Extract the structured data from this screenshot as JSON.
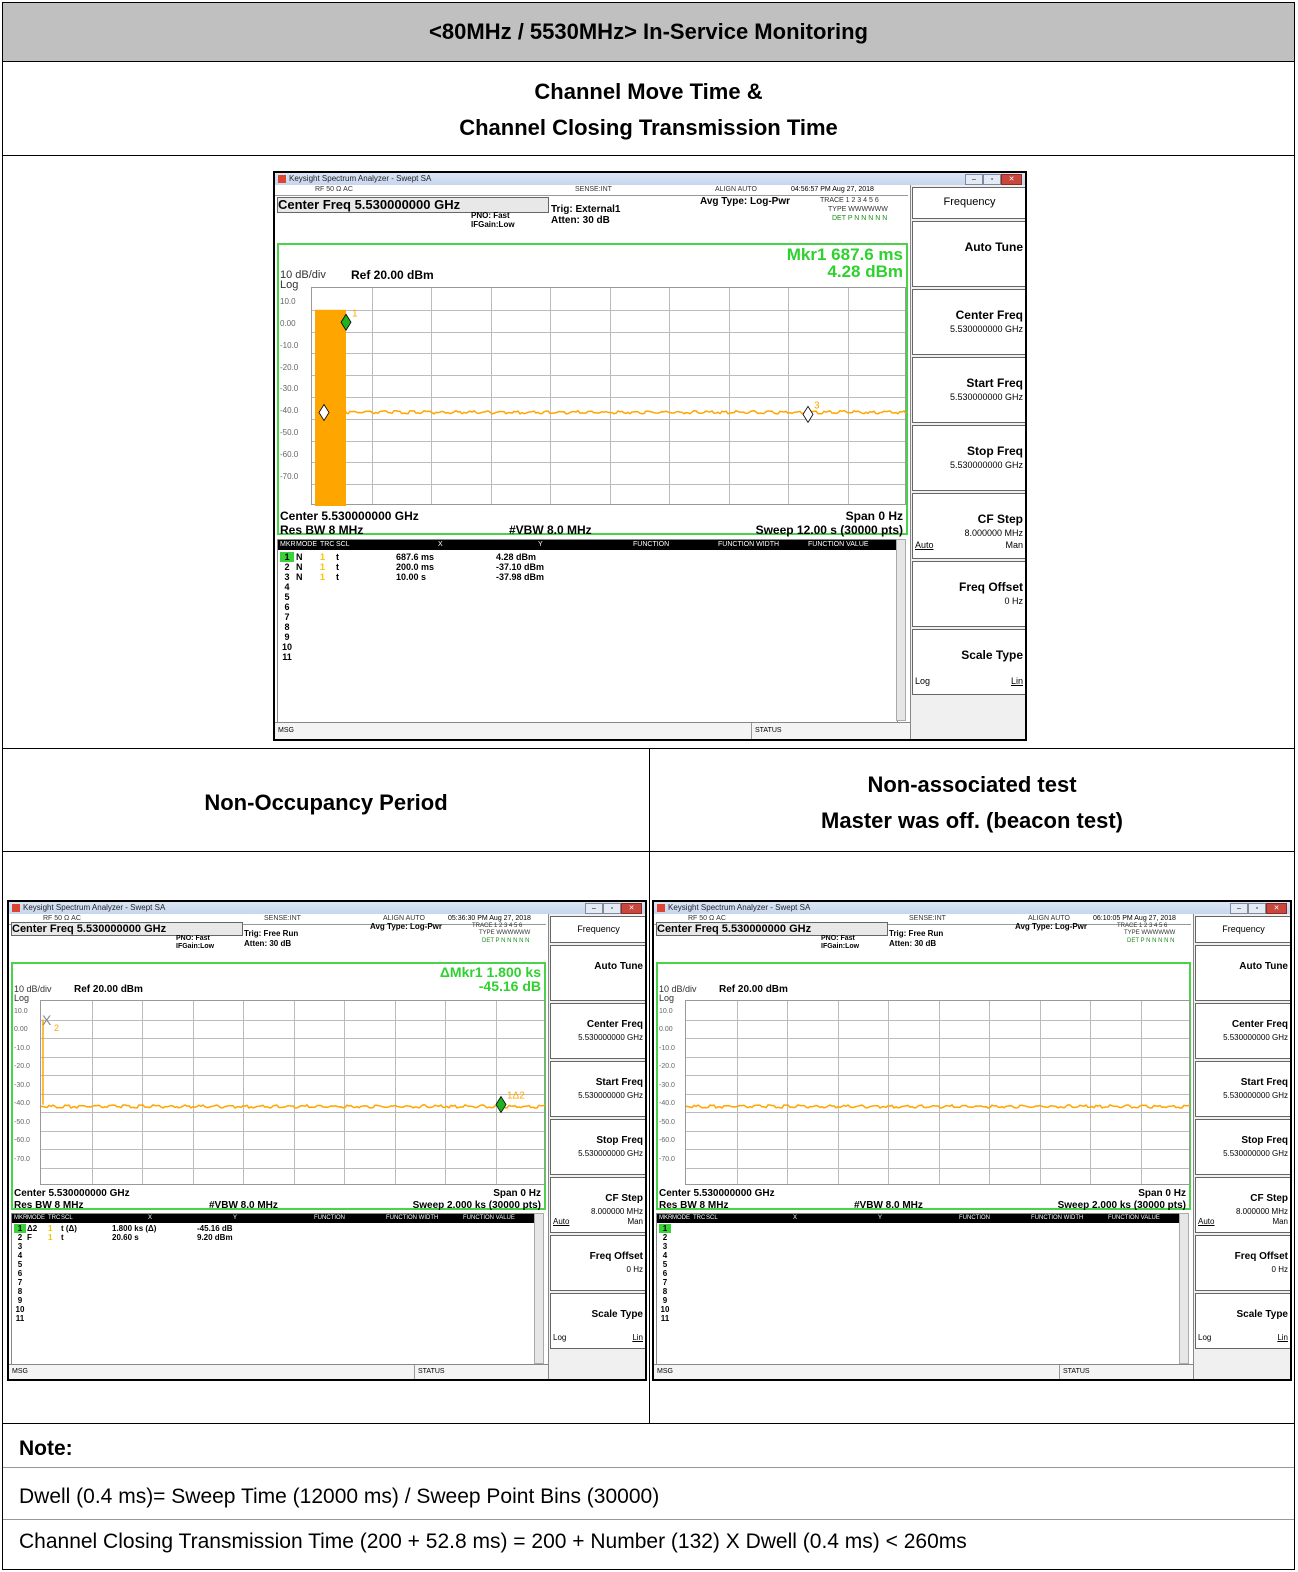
{
  "header": {
    "title": "<80MHz / 5530MHz> In-Service Monitoring"
  },
  "section1": {
    "line1": "Channel Move Time &",
    "line2": "Channel Closing Transmission Time"
  },
  "section2": {
    "left_title": "Non-Occupancy Period",
    "right_line1": "Non-associated test",
    "right_line2": "Master was off. (beacon test)"
  },
  "note": {
    "label": "Note:",
    "line1": "Dwell (0.4 ms)= Sweep Time (12000 ms) / Sweep Point Bins (30000)",
    "line2": "Channel Closing Transmission Time (200 + 52.8 ms) = 200 + Number (132) X Dwell (0.4 ms) < 260ms"
  },
  "analyzers": [
    {
      "window_title": "Keysight Spectrum Analyzer - Swept SA",
      "status_left": "RF    50 Ω  AC",
      "sense": "SENSE:INT",
      "align": "ALIGN AUTO",
      "timestamp": "04:56:57 PM Aug 27, 2018",
      "center_freq_box": "Center Freq 5.530000000 GHz",
      "pno": "PNO: Fast",
      "ifgain": "IFGain:Low",
      "trig": "Trig: External1",
      "atten": "Atten: 30 dB",
      "avg_type": "Avg Type: Log-Pwr",
      "trace_label": "TRACE 1 2 3 4 5 6",
      "type_label": "TYPE WWWWWW",
      "det_label": "DET P N N N N N",
      "mkr_line1": "Mkr1 687.6 ms",
      "mkr_line2": "4.28 dBm",
      "scale": "10 dB/div",
      "ref": "Ref 20.00 dBm",
      "log": "Log",
      "y_ticks": [
        "10.0",
        "0.00",
        "-10.0",
        "-20.0",
        "-30.0",
        "-40.0",
        "-50.0",
        "-60.0",
        "-70.0"
      ],
      "center": "Center 5.530000000 GHz",
      "span": "Span 0 Hz",
      "res_bw": "Res BW 8 MHz",
      "vbw": "#VBW 8.0 MHz",
      "sweep": "Sweep  12.00 s (30000 pts)",
      "table_headers": [
        "MKR",
        "MODE",
        "TRC",
        "SCL",
        "X",
        "Y",
        "FUNCTION",
        "FUNCTION WIDTH",
        "FUNCTION VALUE"
      ],
      "rows": [
        {
          "n": "1",
          "mode": "N",
          "trc": "1",
          "scl": "t",
          "x": "687.6 ms",
          "y": "4.28 dBm"
        },
        {
          "n": "2",
          "mode": "N",
          "trc": "1",
          "scl": "t",
          "x": "200.0 ms",
          "y": "-37.10 dBm"
        },
        {
          "n": "3",
          "mode": "N",
          "trc": "1",
          "scl": "t",
          "x": "10.00 s",
          "y": "-37.98 dBm"
        },
        {
          "n": "4"
        },
        {
          "n": "5"
        },
        {
          "n": "6"
        },
        {
          "n": "7"
        },
        {
          "n": "8"
        },
        {
          "n": "9"
        },
        {
          "n": "10"
        },
        {
          "n": "11"
        }
      ],
      "softkeys": {
        "frequency": "Frequency",
        "auto_tune": "Auto Tune",
        "center_freq": "Center Freq",
        "center_freq_val": "5.530000000 GHz",
        "start_freq": "Start Freq",
        "start_freq_val": "5.530000000 GHz",
        "stop_freq": "Stop Freq",
        "stop_freq_val": "5.530000000 GHz",
        "cf_step": "CF Step",
        "cf_step_val": "8.000000 MHz",
        "auto": "Auto",
        "man": "Man",
        "freq_offset": "Freq Offset",
        "freq_offset_val": "0 Hz",
        "scale_type": "Scale Type",
        "log": "Log",
        "lin": "Lin"
      },
      "msg": "MSG",
      "status": "STATUS",
      "marker_labels": [
        "1",
        "3"
      ]
    },
    {
      "window_title": "Keysight Spectrum Analyzer - Swept SA",
      "status_left": "RF    50 Ω  AC",
      "sense": "SENSE:INT",
      "align": "ALIGN AUTO",
      "timestamp": "05:36:30 PM Aug 27, 2018",
      "center_freq_box": "Center Freq 5.530000000 GHz",
      "pno": "PNO: Fast",
      "ifgain": "IFGain:Low",
      "trig": "Trig: Free Run",
      "atten": "Atten: 30 dB",
      "avg_type": "Avg Type: Log-Pwr",
      "trace_label": "TRACE 1 2 3 4 5 6",
      "type_label": "TYPE WWWWWW",
      "det_label": "DET P N N N N N",
      "mkr_line1": "ΔMkr1 1.800 ks",
      "mkr_line2": "-45.16 dB",
      "scale": "10 dB/div",
      "ref": "Ref 20.00 dBm",
      "log": "Log",
      "y_ticks": [
        "10.0",
        "0.00",
        "-10.0",
        "-20.0",
        "-30.0",
        "-40.0",
        "-50.0",
        "-60.0",
        "-70.0"
      ],
      "center": "Center 5.530000000 GHz",
      "span": "Span 0 Hz",
      "res_bw": "Res BW 8 MHz",
      "vbw": "#VBW 8.0 MHz",
      "sweep": "Sweep  2.000 ks (30000 pts)",
      "table_headers": [
        "MKR",
        "MODE",
        "TRC",
        "SCL",
        "X",
        "Y",
        "FUNCTION",
        "FUNCTION WIDTH",
        "FUNCTION VALUE"
      ],
      "rows": [
        {
          "n": "1",
          "mode": "Δ2",
          "trc": "1",
          "scl": "t  (Δ)",
          "x": "1.800 ks  (Δ)",
          "y": "-45.16 dB"
        },
        {
          "n": "2",
          "mode": "F",
          "trc": "1",
          "scl": "t",
          "x": "20.60 s",
          "y": "9.20 dBm"
        },
        {
          "n": "3"
        },
        {
          "n": "4"
        },
        {
          "n": "5"
        },
        {
          "n": "6"
        },
        {
          "n": "7"
        },
        {
          "n": "8"
        },
        {
          "n": "9"
        },
        {
          "n": "10"
        },
        {
          "n": "11"
        }
      ],
      "softkeys": {
        "frequency": "Frequency",
        "auto_tune": "Auto Tune",
        "center_freq": "Center Freq",
        "center_freq_val": "5.530000000 GHz",
        "start_freq": "Start Freq",
        "start_freq_val": "5.530000000 GHz",
        "stop_freq": "Stop Freq",
        "stop_freq_val": "5.530000000 GHz",
        "cf_step": "CF Step",
        "cf_step_val": "8.000000 MHz",
        "auto": "Auto",
        "man": "Man",
        "freq_offset": "Freq Offset",
        "freq_offset_val": "0 Hz",
        "scale_type": "Scale Type",
        "log": "Log",
        "lin": "Lin"
      },
      "msg": "MSG",
      "status": "STATUS",
      "marker_labels": [
        "2",
        "1Δ2"
      ]
    },
    {
      "window_title": "Keysight Spectrum Analyzer - Swept SA",
      "status_left": "RF    50 Ω  AC",
      "sense": "SENSE:INT",
      "align": "ALIGN AUTO",
      "timestamp": "06:10:05 PM Aug 27, 2018",
      "center_freq_box": "Center Freq 5.530000000 GHz",
      "pno": "PNO: Fast",
      "ifgain": "IFGain:Low",
      "trig": "Trig: Free Run",
      "atten": "Atten: 30 dB",
      "avg_type": "Avg Type: Log-Pwr",
      "trace_label": "TRACE 1 2 3 4 5 6",
      "type_label": "TYPE WWWWWW",
      "det_label": "DET P N N N N N",
      "mkr_line1": "",
      "mkr_line2": "",
      "scale": "10 dB/div",
      "ref": "Ref 20.00 dBm",
      "log": "Log",
      "y_ticks": [
        "10.0",
        "0.00",
        "-10.0",
        "-20.0",
        "-30.0",
        "-40.0",
        "-50.0",
        "-60.0",
        "-70.0"
      ],
      "center": "Center 5.530000000 GHz",
      "span": "Span 0 Hz",
      "res_bw": "Res BW 8 MHz",
      "vbw": "#VBW 8.0 MHz",
      "sweep": "Sweep  2.000 ks (30000 pts)",
      "table_headers": [
        "MKR",
        "MODE",
        "TRC",
        "SCL",
        "X",
        "Y",
        "FUNCTION",
        "FUNCTION WIDTH",
        "FUNCTION VALUE"
      ],
      "rows": [
        {
          "n": "1"
        },
        {
          "n": "2"
        },
        {
          "n": "3"
        },
        {
          "n": "4"
        },
        {
          "n": "5"
        },
        {
          "n": "6"
        },
        {
          "n": "7"
        },
        {
          "n": "8"
        },
        {
          "n": "9"
        },
        {
          "n": "10"
        },
        {
          "n": "11"
        }
      ],
      "softkeys": {
        "frequency": "Frequency",
        "auto_tune": "Auto Tune",
        "center_freq": "Center Freq",
        "center_freq_val": "5.530000000 GHz",
        "start_freq": "Start Freq",
        "start_freq_val": "5.530000000 GHz",
        "stop_freq": "Stop Freq",
        "stop_freq_val": "5.530000000 GHz",
        "cf_step": "CF Step",
        "cf_step_val": "8.000000 MHz",
        "auto": "Auto",
        "man": "Man",
        "freq_offset": "Freq Offset",
        "freq_offset_val": "0 Hz",
        "scale_type": "Scale Type",
        "log": "Log",
        "lin": "Lin"
      },
      "msg": "MSG",
      "status": "STATUS",
      "marker_labels": []
    }
  ],
  "colors": {
    "trace": "#ffa500",
    "graph_border": "#4bd24b",
    "marker_green": "#1fb31f",
    "header_band": "#c0c0c0"
  }
}
